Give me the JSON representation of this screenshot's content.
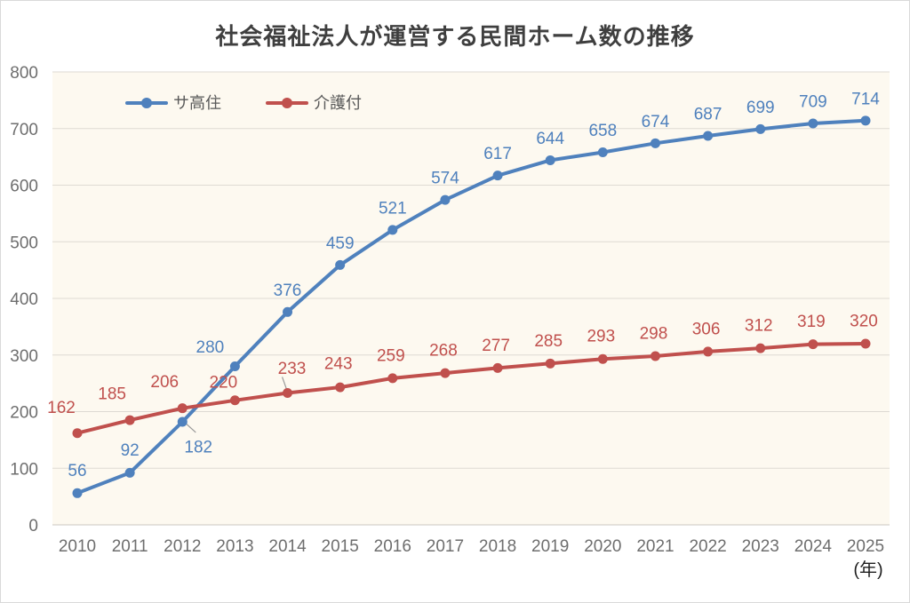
{
  "window": {
    "background": "#FFFFFF",
    "border_color": "#D9D9D9"
  },
  "chart_data": {
    "type": "line",
    "title": "社会福祉法人が運営する民間ホーム数の推移",
    "xlabel": "(年)",
    "ylabel": "",
    "categories": [
      "2010",
      "2011",
      "2012",
      "2013",
      "2014",
      "2015",
      "2016",
      "2017",
      "2018",
      "2019",
      "2020",
      "2021",
      "2022",
      "2023",
      "2024",
      "2025"
    ],
    "series": [
      {
        "name": "サ高住",
        "color": "#4F81BD",
        "values": [
          56,
          92,
          182,
          280,
          376,
          459,
          521,
          574,
          617,
          644,
          658,
          674,
          687,
          699,
          709,
          714
        ]
      },
      {
        "name": "介護付",
        "color": "#C0504D",
        "values": [
          162,
          185,
          206,
          220,
          233,
          243,
          259,
          268,
          277,
          285,
          293,
          298,
          306,
          312,
          319,
          320
        ]
      }
    ],
    "ylim": [
      0,
      800
    ],
    "yticks": [
      0,
      100,
      200,
      300,
      400,
      500,
      600,
      700,
      800
    ],
    "grid": true,
    "data_labels": true,
    "legend_position": "inside-top-left",
    "plot_background": "#FDF9F0",
    "gridline_color": "#DEDAD3",
    "axis_line_color": "#CBC7C0",
    "tick_label_color": "#6E6E6E",
    "title_color": "#3F3F3F",
    "legend_text_color": "#595959",
    "leader_line_color": "#999999"
  }
}
